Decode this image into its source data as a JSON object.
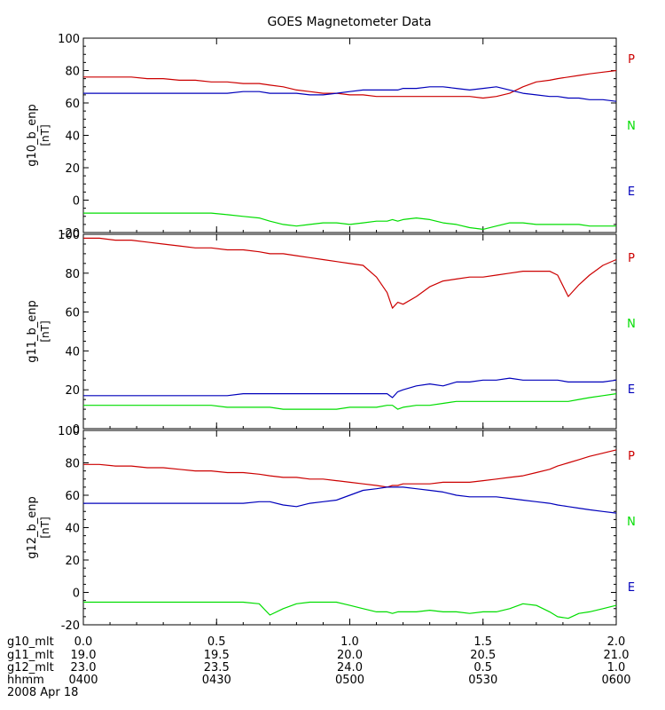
{
  "colors": {
    "P": "#cc0000",
    "N": "#00dd00",
    "E": "#0000bb",
    "axis": "#000000"
  },
  "chart_data": {
    "title": "GOES Magnetometer Data",
    "type": "line",
    "x": [
      0.0,
      0.06,
      0.12,
      0.18,
      0.24,
      0.3,
      0.36,
      0.42,
      0.48,
      0.54,
      0.6,
      0.66,
      0.7,
      0.75,
      0.8,
      0.85,
      0.9,
      0.95,
      1.0,
      1.05,
      1.1,
      1.14,
      1.16,
      1.18,
      1.2,
      1.25,
      1.3,
      1.35,
      1.4,
      1.45,
      1.5,
      1.55,
      1.6,
      1.65,
      1.7,
      1.75,
      1.78,
      1.82,
      1.86,
      1.9,
      1.95,
      2.0
    ],
    "panels": [
      {
        "ylabel": "g10_b_enp",
        "unit": "[nT]",
        "ylim": [
          -20,
          100
        ],
        "yticks": [
          -20,
          0,
          20,
          40,
          60,
          80,
          100
        ],
        "series": [
          {
            "name": "P",
            "values": [
              76,
              76,
              76,
              76,
              75,
              75,
              74,
              74,
              73,
              73,
              72,
              72,
              71,
              70,
              68,
              67,
              66,
              66,
              65,
              65,
              64,
              64,
              64,
              64,
              64,
              64,
              64,
              64,
              64,
              64,
              63,
              64,
              66,
              70,
              73,
              74,
              75,
              76,
              77,
              78,
              79,
              80
            ]
          },
          {
            "name": "N",
            "values": [
              -8,
              -8,
              -8,
              -8,
              -8,
              -8,
              -8,
              -8,
              -8,
              -9,
              -10,
              -11,
              -13,
              -15,
              -16,
              -15,
              -14,
              -14,
              -15,
              -14,
              -13,
              -13,
              -12,
              -13,
              -12,
              -11,
              -12,
              -14,
              -15,
              -17,
              -18,
              -16,
              -14,
              -14,
              -15,
              -15,
              -15,
              -15,
              -15,
              -16,
              -16,
              -16
            ]
          },
          {
            "name": "E",
            "values": [
              66,
              66,
              66,
              66,
              66,
              66,
              66,
              66,
              66,
              66,
              67,
              67,
              66,
              66,
              66,
              65,
              65,
              66,
              67,
              68,
              68,
              68,
              68,
              68,
              69,
              69,
              70,
              70,
              69,
              68,
              69,
              70,
              68,
              66,
              65,
              64,
              64,
              63,
              63,
              62,
              62,
              61
            ]
          }
        ],
        "side_labels": [
          "P",
          "N",
          "E"
        ]
      },
      {
        "ylabel": "g11_b_enp",
        "unit": "[nT]",
        "ylim": [
          0,
          100
        ],
        "yticks": [
          0,
          20,
          40,
          60,
          80,
          100
        ],
        "series": [
          {
            "name": "P",
            "values": [
              98,
              98,
              97,
              97,
              96,
              95,
              94,
              93,
              93,
              92,
              92,
              91,
              90,
              90,
              89,
              88,
              87,
              86,
              85,
              84,
              78,
              70,
              62,
              65,
              64,
              68,
              73,
              76,
              77,
              78,
              78,
              79,
              80,
              81,
              81,
              81,
              79,
              68,
              74,
              79,
              84,
              87
            ]
          },
          {
            "name": "E",
            "values": [
              17,
              17,
              17,
              17,
              17,
              17,
              17,
              17,
              17,
              17,
              18,
              18,
              18,
              18,
              18,
              18,
              18,
              18,
              18,
              18,
              18,
              18,
              16,
              19,
              20,
              22,
              23,
              22,
              24,
              24,
              25,
              25,
              26,
              25,
              25,
              25,
              25,
              24,
              24,
              24,
              24,
              25
            ]
          },
          {
            "name": "N",
            "values": [
              12,
              12,
              12,
              12,
              12,
              12,
              12,
              12,
              12,
              11,
              11,
              11,
              11,
              10,
              10,
              10,
              10,
              10,
              11,
              11,
              11,
              12,
              12,
              10,
              11,
              12,
              12,
              13,
              14,
              14,
              14,
              14,
              14,
              14,
              14,
              14,
              14,
              14,
              15,
              16,
              17,
              18
            ]
          }
        ],
        "side_labels": [
          "P",
          "N",
          "E"
        ]
      },
      {
        "ylabel": "g12_b_enp",
        "unit": "[nT]",
        "ylim": [
          -20,
          100
        ],
        "yticks": [
          -20,
          0,
          20,
          40,
          60,
          80,
          100
        ],
        "series": [
          {
            "name": "P",
            "values": [
              79,
              79,
              78,
              78,
              77,
              77,
              76,
              75,
              75,
              74,
              74,
              73,
              72,
              71,
              71,
              70,
              70,
              69,
              68,
              67,
              66,
              65,
              66,
              66,
              67,
              67,
              67,
              68,
              68,
              68,
              69,
              70,
              71,
              72,
              74,
              76,
              78,
              80,
              82,
              84,
              86,
              88
            ]
          },
          {
            "name": "E",
            "values": [
              55,
              55,
              55,
              55,
              55,
              55,
              55,
              55,
              55,
              55,
              55,
              56,
              56,
              54,
              53,
              55,
              56,
              57,
              60,
              63,
              64,
              65,
              65,
              65,
              65,
              64,
              63,
              62,
              60,
              59,
              59,
              59,
              58,
              57,
              56,
              55,
              54,
              53,
              52,
              51,
              50,
              49
            ]
          },
          {
            "name": "N",
            "values": [
              -6,
              -6,
              -6,
              -6,
              -6,
              -6,
              -6,
              -6,
              -6,
              -6,
              -6,
              -7,
              -14,
              -10,
              -7,
              -6,
              -6,
              -6,
              -8,
              -10,
              -12,
              -12,
              -13,
              -12,
              -12,
              -12,
              -11,
              -12,
              -12,
              -13,
              -12,
              -12,
              -10,
              -7,
              -8,
              -12,
              -15,
              -16,
              -13,
              -12,
              -10,
              -8
            ]
          }
        ],
        "side_labels": [
          "P",
          "N",
          "E"
        ]
      }
    ],
    "x_table": {
      "rows": [
        {
          "label": "g10_mlt",
          "values": [
            "0.0",
            "0.5",
            "1.0",
            "1.5",
            "2.0"
          ]
        },
        {
          "label": "g11_mlt",
          "values": [
            "19.0",
            "19.5",
            "20.0",
            "20.5",
            "21.0"
          ]
        },
        {
          "label": "g12_mlt",
          "values": [
            "23.0",
            "23.5",
            "24.0",
            "0.5",
            "1.0"
          ]
        },
        {
          "label": "hhmm",
          "values": [
            "0400",
            "0430",
            "0500",
            "0530",
            "0600"
          ]
        }
      ],
      "date": "2008 Apr 18"
    }
  }
}
